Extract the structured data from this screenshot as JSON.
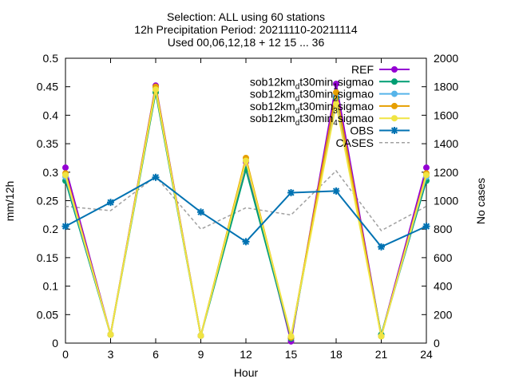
{
  "chart_data": {
    "type": "line",
    "title_lines": [
      "Selection: ALL using    60 stations",
      "12h Precipitation   Period: 20211110-20211114",
      "Used 00,06,12,18 + 12 15 ... 36"
    ],
    "xlabel": "Hour",
    "ylabel": "mm/12h",
    "y2label": "No cases",
    "x": [
      0,
      3,
      6,
      9,
      12,
      15,
      18,
      21,
      24
    ],
    "xlim": [
      0,
      24
    ],
    "ylim": [
      0,
      0.5
    ],
    "y2lim": [
      0,
      2000
    ],
    "x_ticks": [
      "0",
      "3",
      "6",
      "9",
      "12",
      "15",
      "18",
      "21",
      "24"
    ],
    "y_ticks": [
      "0",
      "0.05",
      "0.1",
      "0.15",
      "0.2",
      "0.25",
      "0.3",
      "0.35",
      "0.4",
      "0.45",
      "0.5"
    ],
    "y2_ticks": [
      "0",
      "200",
      "400",
      "600",
      "800",
      "1000",
      "1200",
      "1400",
      "1600",
      "1800",
      "2000"
    ],
    "legend_position": "top-right",
    "series": [
      {
        "name": "REF",
        "color": "#9400d3",
        "marker": "circle",
        "axis": "y",
        "values": [
          0.308,
          0.015,
          0.452,
          0.013,
          0.318,
          0.003,
          0.455,
          0.013,
          0.308
        ]
      },
      {
        "name_parts": [
          "sob12km",
          "d",
          "t30min",
          "1",
          "sigmao"
        ],
        "color": "#009e73",
        "marker": "circle",
        "axis": "y",
        "values": [
          0.285,
          0.015,
          0.44,
          0.013,
          0.305,
          0.008,
          0.43,
          0.015,
          0.285
        ]
      },
      {
        "name_parts": [
          "sob12km",
          "d",
          "t30min",
          "2",
          "sigmao"
        ],
        "color": "#56b4e9",
        "marker": "circle",
        "axis": "y",
        "values": [
          0.292,
          0.015,
          0.448,
          0.013,
          0.32,
          0.01,
          0.435,
          0.012,
          0.292
        ]
      },
      {
        "name_parts": [
          "sob12km",
          "d",
          "t30min",
          "3",
          "sigmao"
        ],
        "color": "#e69f00",
        "marker": "circle",
        "axis": "y",
        "values": [
          0.298,
          0.015,
          0.45,
          0.013,
          0.325,
          0.01,
          0.44,
          0.012,
          0.298
        ]
      },
      {
        "name_parts": [
          "sob12km",
          "d",
          "t30min",
          "4",
          "sigmao"
        ],
        "color": "#f0e442",
        "marker": "circle",
        "axis": "y",
        "values": [
          0.295,
          0.015,
          0.445,
          0.013,
          0.32,
          0.012,
          0.42,
          0.012,
          0.295
        ]
      },
      {
        "name": "OBS",
        "color": "#0072b2",
        "marker": "star",
        "axis": "y",
        "values": [
          0.205,
          0.247,
          0.291,
          0.23,
          0.178,
          0.264,
          0.267,
          0.169,
          0.205
        ]
      },
      {
        "name": "CASES",
        "color": "#a0a0a0",
        "marker": "none",
        "dashed": true,
        "axis": "y2",
        "values": [
          960,
          930,
          1170,
          800,
          950,
          900,
          1210,
          790,
          960
        ]
      }
    ]
  }
}
